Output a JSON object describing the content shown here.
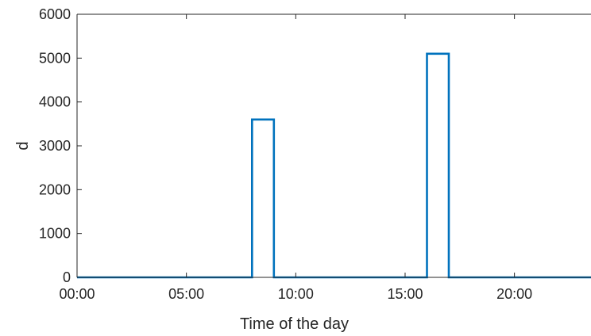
{
  "chart_data": {
    "type": "line",
    "title": "",
    "xlabel": "Time of the day",
    "ylabel": "d",
    "x_unit": "hour of day",
    "xlim": [
      0,
      23.5
    ],
    "ylim": [
      0,
      6000
    ],
    "x_ticks": [
      {
        "value": 0,
        "label": "00:00"
      },
      {
        "value": 5,
        "label": "05:00"
      },
      {
        "value": 10,
        "label": "10:00"
      },
      {
        "value": 15,
        "label": "15:00"
      },
      {
        "value": 20,
        "label": "20:00"
      }
    ],
    "y_ticks": [
      {
        "value": 0,
        "label": "0"
      },
      {
        "value": 1000,
        "label": "1000"
      },
      {
        "value": 2000,
        "label": "2000"
      },
      {
        "value": 3000,
        "label": "3000"
      },
      {
        "value": 4000,
        "label": "4000"
      },
      {
        "value": 5000,
        "label": "5000"
      },
      {
        "value": 6000,
        "label": "6000"
      }
    ],
    "grid": false,
    "legend": "none",
    "series": [
      {
        "color": "#0072BD",
        "x": [
          0,
          8,
          8,
          9,
          9,
          16,
          16,
          17,
          17,
          23.5
        ],
        "y": [
          0,
          0,
          3600,
          3600,
          0,
          0,
          5100,
          5100,
          0,
          0
        ]
      }
    ]
  }
}
